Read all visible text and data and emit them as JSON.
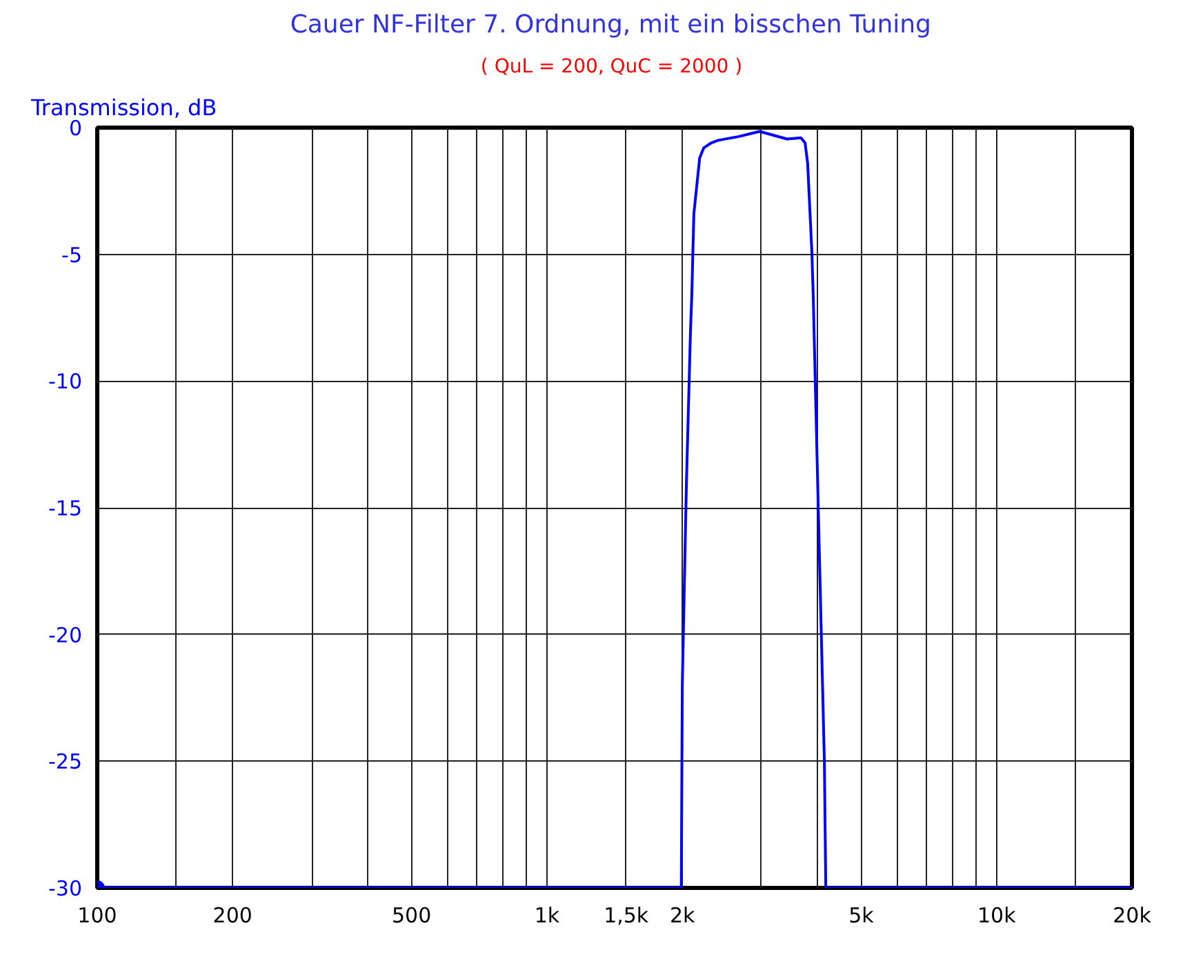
{
  "chart_data": {
    "type": "line",
    "title": "Cauer NF-Filter  7. Ordnung, mit ein bisschen Tuning",
    "subtitle": "( QuL = 200,  QuC = 2000 )",
    "ylabel": "Transmission, dB",
    "log": "x",
    "grid": true,
    "marker": "none",
    "line_style": "solid",
    "xlim": [
      100,
      20000
    ],
    "ylim": [
      -30,
      0
    ],
    "xticks": [
      100,
      {
        "value": 150,
        "label": null
      },
      200,
      {
        "value": 300,
        "label": null
      },
      {
        "value": 400,
        "label": null
      },
      500,
      {
        "value": 600,
        "label": null
      },
      {
        "value": 700,
        "label": null
      },
      {
        "value": 800,
        "label": null
      },
      {
        "value": 900,
        "label": null
      },
      {
        "value": 1000,
        "label": "1k"
      },
      {
        "value": 1500,
        "label": "1,5k"
      },
      {
        "value": 2000,
        "label": "2k"
      },
      {
        "value": 3000,
        "label": null
      },
      {
        "value": 4000,
        "label": null
      },
      {
        "value": 5000,
        "label": "5k"
      },
      {
        "value": 6000,
        "label": null
      },
      {
        "value": 7000,
        "label": null
      },
      {
        "value": 8000,
        "label": null
      },
      {
        "value": 9000,
        "label": null
      },
      {
        "value": 10000,
        "label": "10k"
      },
      {
        "value": 15000,
        "label": null
      },
      {
        "value": 20000,
        "label": "20k"
      }
    ],
    "yticks": [
      -30,
      -25,
      -20,
      -15,
      -10,
      -5,
      0
    ],
    "series": [
      {
        "color": "#0000ff",
        "x": [
          100,
          1990,
          2000,
          2043,
          2086,
          2100,
          2122,
          2186,
          2232,
          2321,
          2404,
          2672,
          2971,
          3188,
          3420,
          3670,
          3750,
          3800,
          3883,
          3910,
          4025,
          4140,
          4170,
          20000
        ],
        "values": [
          -30,
          -30,
          -22,
          -14,
          -8,
          -6.6,
          -3.4,
          -1.2,
          -0.8,
          -0.6,
          -0.5,
          -0.35,
          -0.15,
          -0.3,
          -0.45,
          -0.4,
          -0.6,
          -1.4,
          -4.9,
          -6.6,
          -16,
          -25,
          -30,
          -30
        ]
      },
      {
        "type": "scatter",
        "marker": "circle",
        "color": "#0000ff",
        "x": [
          100
        ],
        "values": [
          -30
        ]
      }
    ]
  }
}
